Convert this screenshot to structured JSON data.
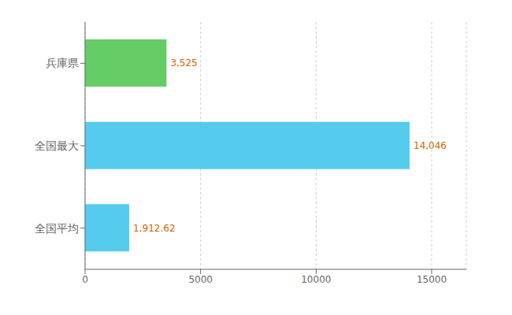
{
  "chart_data": {
    "type": "bar",
    "orientation": "horizontal",
    "categories": [
      "全国平均",
      "全国最大",
      "兵庫県"
    ],
    "values": [
      1912.62,
      14046,
      3525
    ],
    "value_labels": [
      "1,912.62",
      "14,046",
      "3,525"
    ],
    "data_labels": true,
    "colors": [
      "#55CCEE",
      "#55CCEE",
      "#66CC66"
    ],
    "xlim": [
      0,
      16500
    ],
    "xticks": [
      0,
      5000,
      10000,
      15000
    ],
    "grid": true
  }
}
